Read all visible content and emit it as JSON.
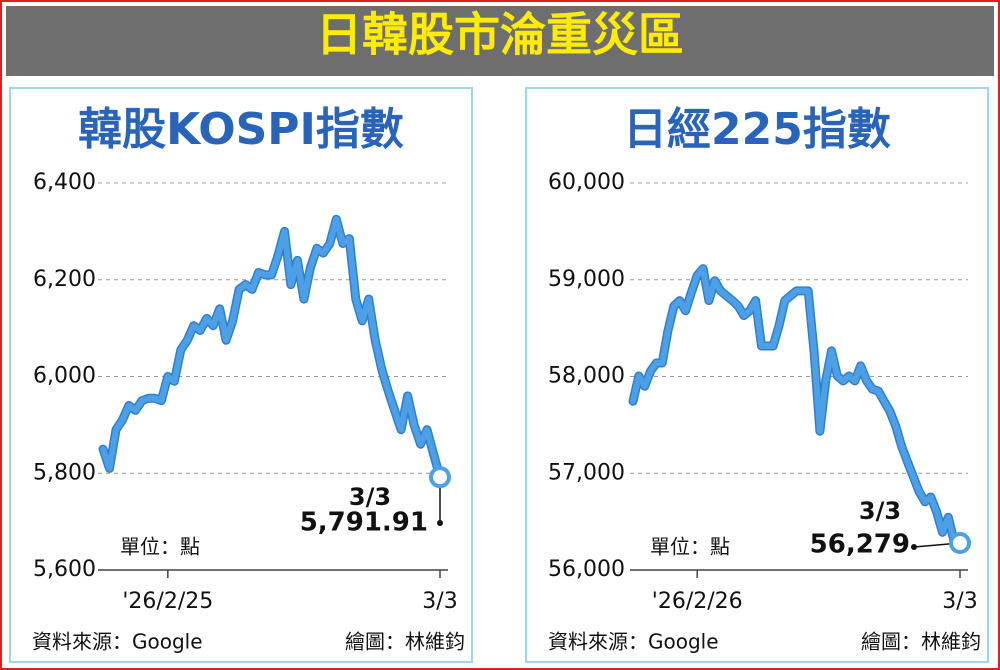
{
  "title": "日韓股市淪重災區",
  "chart_data": [
    {
      "type": "line",
      "title": "韓股KOSPI指數",
      "unit": "單位：點",
      "source": "資料來源：Google",
      "credit": "繪圖：林維鈞",
      "callout_date": "3/3",
      "categories": [
        null,
        null,
        null,
        null,
        null,
        null,
        null,
        null,
        null,
        null,
        "'26/2/25",
        null,
        null,
        null,
        null,
        null,
        null,
        null,
        null,
        null,
        null,
        null,
        null,
        null,
        null,
        null,
        null,
        null,
        null,
        null,
        null,
        null,
        null,
        null,
        null,
        null,
        null,
        null,
        null,
        null,
        null,
        null,
        null,
        null,
        null,
        null,
        null,
        null,
        null,
        null,
        null,
        null,
        "3/3"
      ],
      "series": [
        {
          "name": "KOSPI",
          "color": "#4d9fe6",
          "values": [
            5850,
            5810,
            5890,
            5910,
            5940,
            5930,
            5950,
            5955,
            5955,
            5950,
            6000,
            5990,
            6055,
            6075,
            6105,
            6095,
            6120,
            6105,
            6140,
            6075,
            6115,
            6180,
            6190,
            6180,
            6215,
            6210,
            6210,
            6250,
            6300,
            6190,
            6240,
            6160,
            6225,
            6265,
            6255,
            6275,
            6325,
            6275,
            6285,
            6160,
            6115,
            6160,
            6075,
            6015,
            5970,
            5930,
            5890,
            5960,
            5900,
            5860,
            5890,
            5840,
            5791.91
          ],
          "value_labels": [
            null,
            null,
            null,
            null,
            null,
            null,
            null,
            null,
            null,
            null,
            null,
            null,
            null,
            null,
            null,
            null,
            null,
            null,
            null,
            null,
            null,
            null,
            null,
            null,
            null,
            null,
            null,
            null,
            null,
            null,
            null,
            null,
            null,
            null,
            null,
            null,
            null,
            null,
            null,
            null,
            null,
            null,
            null,
            null,
            null,
            null,
            null,
            null,
            null,
            null,
            null,
            null,
            "5,791.91"
          ]
        }
      ],
      "ylim": [
        5600,
        6400
      ],
      "yticks": [
        {
          "value": 5600,
          "label": "5,600"
        },
        {
          "value": 5800,
          "label": "5,800"
        },
        {
          "value": 6000,
          "label": "6,000"
        },
        {
          "value": 6200,
          "label": "6,200"
        },
        {
          "value": 6400,
          "label": "6,400"
        }
      ],
      "grid": true
    },
    {
      "type": "line",
      "title": "日經225指數",
      "unit": "單位：點",
      "source": "資料來源：Google",
      "credit": "繪圖：林維鈞",
      "callout_date": "3/3",
      "categories": [
        null,
        null,
        null,
        null,
        null,
        null,
        null,
        null,
        null,
        null,
        null,
        "'26/2/26",
        null,
        null,
        null,
        null,
        null,
        null,
        null,
        null,
        null,
        null,
        null,
        null,
        null,
        null,
        null,
        null,
        null,
        null,
        null,
        null,
        null,
        null,
        null,
        null,
        null,
        null,
        null,
        null,
        null,
        null,
        null,
        null,
        null,
        null,
        null,
        null,
        null,
        null,
        null,
        null,
        null,
        null,
        null,
        null,
        "3/3"
      ],
      "series": [
        {
          "name": "日經225",
          "color": "#4d9fe6",
          "values": [
            57745,
            58005,
            57900,
            58055,
            58140,
            58140,
            58475,
            58730,
            58785,
            58680,
            58870,
            59045,
            59115,
            58785,
            58990,
            58885,
            58835,
            58785,
            58730,
            58630,
            58680,
            58785,
            58315,
            58315,
            58315,
            58525,
            58785,
            58835,
            58885,
            58885,
            58885,
            58265,
            57435,
            57955,
            58265,
            58005,
            57955,
            58005,
            57955,
            58110,
            57955,
            57870,
            57850,
            57745,
            57640,
            57485,
            57280,
            57120,
            56965,
            56810,
            56705,
            56755,
            56600,
            56390,
            56545,
            56290,
            56279
          ],
          "value_labels": [
            null,
            null,
            null,
            null,
            null,
            null,
            null,
            null,
            null,
            null,
            null,
            null,
            null,
            null,
            null,
            null,
            null,
            null,
            null,
            null,
            null,
            null,
            null,
            null,
            null,
            null,
            null,
            null,
            null,
            null,
            null,
            null,
            null,
            null,
            null,
            null,
            null,
            null,
            null,
            null,
            null,
            null,
            null,
            null,
            null,
            null,
            null,
            null,
            null,
            null,
            null,
            null,
            null,
            null,
            null,
            null,
            "56,279"
          ]
        }
      ],
      "ylim": [
        56000,
        60000
      ],
      "yticks": [
        {
          "value": 56000,
          "label": "56,000"
        },
        {
          "value": 57000,
          "label": "57,000"
        },
        {
          "value": 58000,
          "label": "58,000"
        },
        {
          "value": 59000,
          "label": "59,000"
        },
        {
          "value": 60000,
          "label": "60,000"
        }
      ],
      "grid": true
    }
  ]
}
